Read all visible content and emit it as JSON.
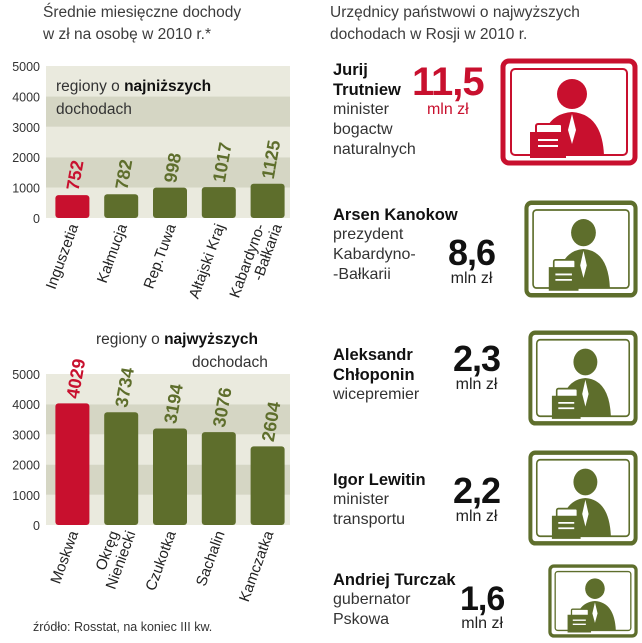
{
  "left_title": {
    "line1": "Średnie miesięczne dochody",
    "line2": "w zł na osobę w 2010 r.*"
  },
  "right_title": {
    "line1": "Urzędnicy państwowi o najwyższych",
    "line2": "dochodach  w Rosji w 2010 r."
  },
  "colors": {
    "highlight": "#c8102e",
    "olive": "#5e6e2c",
    "band_dark": "#d5d6c4",
    "band_light": "#eaeade"
  },
  "chart_data": [
    {
      "type": "bar",
      "label_line1": "regiony o ",
      "label_bold1": "najniższych",
      "label_line2": "dochodach",
      "categories": [
        "Inguszetia",
        "Kałmucja",
        "Rep.Tuwa",
        "Ałtajski Kraj",
        "Kabardyno-|-Bałkaria"
      ],
      "values": [
        752,
        782,
        998,
        1017,
        1125
      ],
      "value_labels": [
        "752",
        "782",
        "998",
        "1017",
        "1125"
      ],
      "highlight_index": 0,
      "yticks": [
        "0",
        "1000",
        "2000",
        "3000",
        "4000",
        "5000"
      ],
      "ylim": [
        0,
        5000
      ]
    },
    {
      "type": "bar",
      "label_line1": "regiony o ",
      "label_bold1": "najwyższych",
      "label_line2": "dochodach",
      "categories": [
        "Moskwa",
        "Okręg|Nieniecki",
        "Czukotka",
        "Sachalin",
        "Kamczatka"
      ],
      "values": [
        4029,
        3734,
        3194,
        3076,
        2604
      ],
      "value_labels": [
        "4029",
        "3734",
        "3194",
        "3076",
        "2604"
      ],
      "highlight_index": 0,
      "yticks": [
        "0",
        "1000",
        "2000",
        "3000",
        "4000",
        "5000"
      ],
      "ylim": [
        0,
        5000
      ]
    }
  ],
  "officials": [
    {
      "name_lines": [
        "Jurij",
        "Trutniew"
      ],
      "role_lines": [
        "minister",
        "bogactw",
        "naturalnych"
      ],
      "amount": "11,5",
      "unit": "mln zł",
      "highlight": true
    },
    {
      "name_lines": [
        "Arsen Kanokow"
      ],
      "role_lines": [
        "prezydent",
        "Kabardyno-",
        "-Bałkarii"
      ],
      "amount": "8,6",
      "unit": "mln zł",
      "highlight": false
    },
    {
      "name_lines": [
        "Aleksandr",
        "Chłoponin"
      ],
      "role_lines": [
        "wicepremier"
      ],
      "amount": "2,3",
      "unit": "mln zł",
      "highlight": false
    },
    {
      "name_lines": [
        "Igor Lewitin"
      ],
      "role_lines": [
        "minister",
        "transportu"
      ],
      "amount": "2,2",
      "unit": "mln zł",
      "highlight": false
    },
    {
      "name_lines": [
        "Andriej Turczak"
      ],
      "role_lines": [
        "gubernator",
        "Pskowa"
      ],
      "amount": "1,6",
      "unit": "mln zł",
      "highlight": false
    }
  ],
  "source": "źródło: Rosstat, na koniec III kw."
}
